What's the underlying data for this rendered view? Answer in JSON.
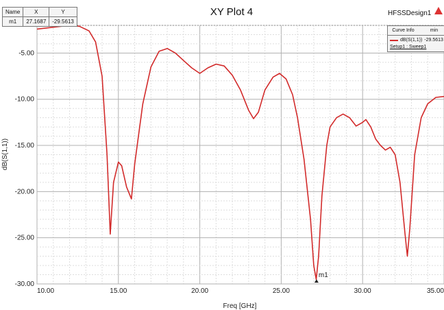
{
  "chart_data": {
    "type": "line",
    "title": "XY Plot 4",
    "xlabel": "Freq [GHz]",
    "ylabel": "dB(S(1,1))",
    "xlim": [
      10,
      35
    ],
    "ylim": [
      -30,
      -2
    ],
    "xticks": [
      10,
      15,
      20,
      25,
      30,
      35
    ],
    "xtick_labels": [
      "10.00",
      "15.00",
      "20.00",
      "25.00",
      "30.00",
      "35.00"
    ],
    "yticks": [
      -5,
      -10,
      -15,
      -20,
      -25,
      -30
    ],
    "ytick_labels": [
      "-5.00",
      "-10.00",
      "-15.00",
      "-20.00",
      "-25.00",
      "-30.00"
    ],
    "grid": true,
    "series": [
      {
        "name": "dB(S(1,1))",
        "color": "#d22a2a",
        "x": [
          10,
          11,
          12,
          12.6,
          13.2,
          13.6,
          14.0,
          14.3,
          14.5,
          14.7,
          15.0,
          15.2,
          15.5,
          15.8,
          16.0,
          16.5,
          17.0,
          17.5,
          18.0,
          18.5,
          19.0,
          19.5,
          20.0,
          20.5,
          21.0,
          21.5,
          22.0,
          22.5,
          23.0,
          23.3,
          23.6,
          24.0,
          24.5,
          24.9,
          25.3,
          25.7,
          26.0,
          26.4,
          26.8,
          27.0,
          27.15,
          27.3,
          27.5,
          27.8,
          28.0,
          28.4,
          28.8,
          29.2,
          29.6,
          30.0,
          30.2,
          30.5,
          30.8,
          31.1,
          31.4,
          31.7,
          32.0,
          32.3,
          32.6,
          32.75,
          32.9,
          33.2,
          33.6,
          34.0,
          34.5,
          35.0
        ],
        "y": [
          -2.4,
          -2.2,
          -2.0,
          -2.1,
          -2.6,
          -3.8,
          -7.5,
          -16.0,
          -24.6,
          -19.0,
          -16.8,
          -17.2,
          -19.5,
          -20.8,
          -17.0,
          -10.5,
          -6.5,
          -4.8,
          -4.5,
          -5.0,
          -5.8,
          -6.6,
          -7.2,
          -6.6,
          -6.2,
          -6.4,
          -7.4,
          -9.0,
          -11.2,
          -12.1,
          -11.4,
          -9.0,
          -7.6,
          -7.2,
          -7.8,
          -9.5,
          -12.0,
          -16.5,
          -23.0,
          -28.0,
          -29.5,
          -27.0,
          -20.5,
          -15.0,
          -13.0,
          -12.0,
          -11.6,
          -12.0,
          -12.9,
          -12.5,
          -12.2,
          -13.0,
          -14.3,
          -15.0,
          -15.5,
          -15.2,
          -16.0,
          -19.0,
          -24.5,
          -27.0,
          -24.0,
          -16.0,
          -12.0,
          -10.5,
          -9.8,
          -9.7
        ]
      }
    ],
    "markers": [
      {
        "name": "m1",
        "x": 27.1687,
        "y": -29.5613
      }
    ]
  },
  "marker_table": {
    "headers": [
      "Name",
      "X",
      "Y"
    ],
    "rows": [
      [
        "m1",
        "27.1687",
        "-29.5613"
      ]
    ]
  },
  "legend": {
    "headers": [
      "Curve Info",
      "min"
    ],
    "entry_name": "dB(S(1,1))",
    "entry_value": "-29.5613",
    "entry_setup": "Setup1 : Sweep1"
  },
  "design_name": "HFSSDesign1"
}
